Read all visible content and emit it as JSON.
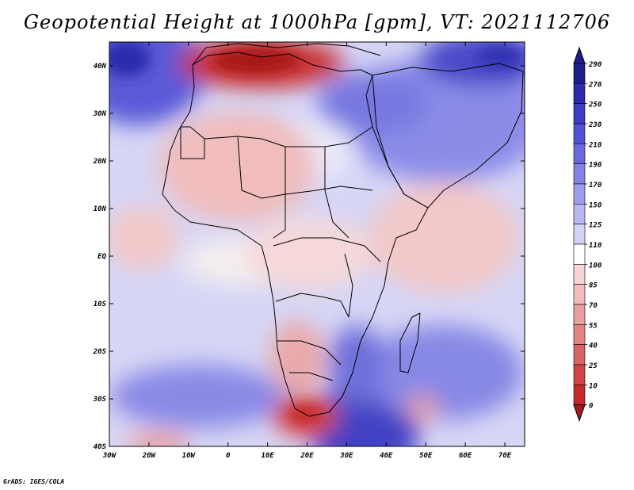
{
  "title": "Geopotential Height at 1000hPa [gpm], VT: 2021112706",
  "credit": "GrADS: IGES/COLA",
  "lat_labels": [
    "40N",
    "30N",
    "20N",
    "10N",
    "EQ",
    "10S",
    "20S",
    "30S",
    "40S"
  ],
  "lat_values": [
    40,
    30,
    20,
    10,
    0,
    -10,
    -20,
    -30,
    -40
  ],
  "lon_labels": [
    "30W",
    "20W",
    "10W",
    "0",
    "10E",
    "20E",
    "30E",
    "40E",
    "50E",
    "60E",
    "70E"
  ],
  "lon_values": [
    -30,
    -20,
    -10,
    0,
    10,
    20,
    30,
    40,
    50,
    60,
    70
  ],
  "colorbar": {
    "levels": [
      "290",
      "270",
      "250",
      "230",
      "210",
      "190",
      "170",
      "150",
      "125",
      "110",
      "100",
      "85",
      "70",
      "55",
      "40",
      "25",
      "10",
      "0"
    ],
    "colors": [
      "#1e1e8c",
      "#2b2bac",
      "#3d3dc6",
      "#5252d6",
      "#6a6ade",
      "#8383e6",
      "#9d9dee",
      "#b7b7f2",
      "#d3d3f8",
      "#ffffff",
      "#f7d4d4",
      "#f3bcbc",
      "#eba0a0",
      "#e38282",
      "#da6464",
      "#d04444",
      "#c42a2a",
      "#a81818"
    ]
  },
  "colors": {
    "high": "#2a2aa8",
    "low": "#b31b1b",
    "mid": "#ffffff"
  }
}
